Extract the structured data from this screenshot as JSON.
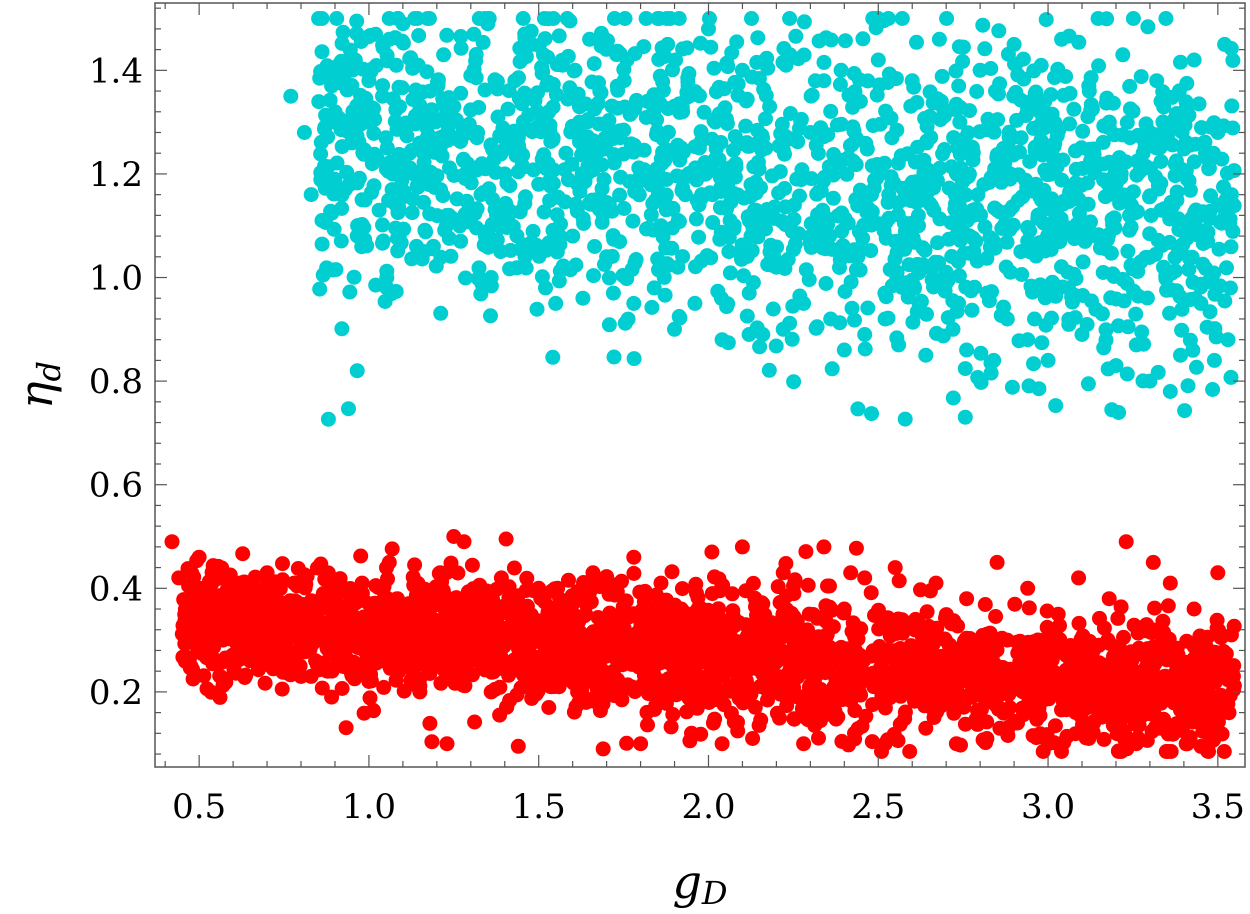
{
  "chart_data": {
    "type": "scatter",
    "title": "",
    "xlabel": "g",
    "xlabel_sub": "D",
    "ylabel": "η",
    "ylabel_sub": "d",
    "xlim": [
      0.37,
      3.58
    ],
    "ylim": [
      0.055,
      1.53
    ],
    "xticks": [
      0.5,
      1.0,
      1.5,
      2.0,
      2.5,
      3.0,
      3.5
    ],
    "xtick_labels": [
      "0.5",
      "1.0",
      "1.5",
      "2.0",
      "2.5",
      "3.0",
      "3.5"
    ],
    "yticks": [
      0.2,
      0.4,
      0.6,
      0.8,
      1.0,
      1.2,
      1.4
    ],
    "ytick_labels": [
      "0.2",
      "0.4",
      "0.6",
      "0.8",
      "1.0",
      "1.2",
      "1.4"
    ],
    "grid": false,
    "legend": "none",
    "series": [
      {
        "color": "#00CED1",
        "points": [
          [
            0.77,
            1.35
          ],
          [
            0.81,
            1.28
          ],
          [
            0.83,
            1.16
          ],
          [
            0.86,
            1.19
          ],
          [
            0.87,
            1.29
          ],
          [
            0.89,
            1.37
          ],
          [
            0.9,
            1.32
          ],
          [
            0.92,
            1.4
          ],
          [
            0.93,
            1.17
          ],
          [
            0.95,
            1.26
          ],
          [
            0.96,
            1.42
          ],
          [
            0.98,
            1.15
          ],
          [
            0.99,
            1.3
          ],
          [
            1.0,
            1.38
          ],
          [
            1.01,
            1.22
          ],
          [
            1.03,
            1.13
          ],
          [
            1.04,
            1.35
          ],
          [
            1.05,
            1.27
          ],
          [
            1.06,
            1.46
          ],
          [
            1.07,
            1.2
          ],
          [
            1.08,
            1.14
          ],
          [
            1.09,
            1.33
          ],
          [
            1.1,
            1.49
          ],
          [
            1.12,
            1.24
          ],
          [
            1.13,
            1.41
          ],
          [
            1.14,
            1.06
          ],
          [
            1.15,
            1.3
          ],
          [
            1.17,
            1.19
          ],
          [
            1.18,
            1.36
          ],
          [
            1.19,
            1.06
          ],
          [
            1.21,
            1.25
          ],
          [
            1.22,
            1.43
          ],
          [
            1.23,
            1.12
          ],
          [
            1.25,
            1.33
          ],
          [
            1.27,
            1.07
          ],
          [
            1.29,
            1.22
          ],
          [
            1.3,
            1.39
          ],
          [
            1.32,
            1.28
          ],
          [
            1.33,
            1.16
          ],
          [
            1.35,
            1.49
          ],
          [
            1.36,
            1.0
          ],
          [
            1.38,
            1.31
          ],
          [
            1.4,
            1.2
          ],
          [
            1.41,
            1.11
          ],
          [
            1.43,
            1.38
          ],
          [
            1.44,
            1.27
          ],
          [
            1.46,
            1.04
          ],
          [
            1.48,
            1.45
          ],
          [
            1.5,
            1.18
          ],
          [
            1.52,
            0.98
          ],
          [
            1.53,
            1.32
          ],
          [
            1.55,
            0.95
          ],
          [
            1.57,
            1.41
          ],
          [
            1.58,
            1.24
          ],
          [
            1.6,
            1.08
          ],
          [
            1.62,
            1.3
          ],
          [
            1.63,
            0.96
          ],
          [
            1.65,
            1.46
          ],
          [
            1.67,
            1.15
          ],
          [
            1.68,
            1.36
          ],
          [
            1.7,
            1.04
          ],
          [
            1.72,
            0.97
          ],
          [
            1.74,
            1.27
          ],
          [
            1.76,
            1.42
          ],
          [
            1.78,
            0.95
          ],
          [
            1.8,
            1.19
          ],
          [
            1.82,
            1.34
          ],
          [
            1.84,
            0.98
          ],
          [
            1.86,
            1.1
          ],
          [
            1.88,
            1.45
          ],
          [
            1.9,
            0.9
          ],
          [
            1.92,
            1.25
          ],
          [
            1.94,
            1.37
          ],
          [
            1.96,
            0.95
          ],
          [
            1.98,
            1.16
          ],
          [
            2.0,
            1.48
          ],
          [
            2.02,
            1.3
          ],
          [
            2.04,
            0.88
          ],
          [
            2.06,
            1.05
          ],
          [
            2.08,
            1.22
          ],
          [
            2.1,
            1.4
          ],
          [
            2.12,
            0.97
          ],
          [
            2.14,
            1.13
          ],
          [
            2.16,
            0.89
          ],
          [
            2.18,
            1.33
          ],
          [
            2.2,
            1.02
          ],
          [
            2.22,
            0.9
          ],
          [
            2.24,
            1.43
          ],
          [
            2.26,
            1.19
          ],
          [
            2.28,
            0.95
          ],
          [
            2.3,
            1.28
          ],
          [
            2.32,
            1.08
          ],
          [
            2.34,
            1.38
          ],
          [
            2.36,
            0.92
          ],
          [
            2.38,
            1.22
          ],
          [
            2.4,
            0.86
          ],
          [
            2.42,
            1.35
          ],
          [
            2.44,
            1.04
          ],
          [
            2.46,
            0.89
          ],
          [
            2.48,
            1.16
          ],
          [
            2.5,
            1.42
          ],
          [
            2.52,
            0.92
          ],
          [
            2.54,
            1.27
          ],
          [
            2.56,
            0.87
          ],
          [
            2.58,
            1.09
          ],
          [
            2.6,
            1.38
          ],
          [
            2.62,
            0.95
          ],
          [
            2.64,
            0.85
          ],
          [
            2.66,
            1.2
          ],
          [
            2.68,
            1.46
          ],
          [
            2.7,
            1.01
          ],
          [
            2.72,
            0.9
          ],
          [
            2.74,
            1.3
          ],
          [
            2.76,
            0.86
          ],
          [
            2.78,
            1.12
          ],
          [
            2.8,
            1.4
          ],
          [
            2.82,
            0.97
          ],
          [
            2.84,
            0.84
          ],
          [
            2.86,
            1.23
          ],
          [
            2.88,
            0.92
          ],
          [
            2.9,
            1.45
          ],
          [
            2.92,
            1.05
          ],
          [
            2.94,
            0.88
          ],
          [
            2.96,
            1.33
          ],
          [
            2.98,
            1.15
          ],
          [
            3.0,
            0.84
          ],
          [
            3.02,
            1.26
          ],
          [
            3.04,
            1.46
          ],
          [
            3.06,
            0.98
          ],
          [
            3.08,
            1.18
          ],
          [
            3.1,
            0.89
          ],
          [
            3.12,
            1.37
          ],
          [
            3.14,
            1.08
          ],
          [
            3.16,
            0.93
          ],
          [
            3.18,
            1.29
          ],
          [
            3.2,
            0.83
          ],
          [
            3.22,
            1.43
          ],
          [
            3.24,
            1.12
          ],
          [
            3.26,
            0.87
          ],
          [
            3.28,
            1.24
          ],
          [
            3.3,
            0.8
          ],
          [
            3.32,
            1.38
          ],
          [
            3.34,
            1.02
          ],
          [
            3.36,
            0.78
          ],
          [
            3.37,
            1.3
          ],
          [
            3.39,
            0.85
          ],
          [
            3.41,
            1.19
          ],
          [
            3.43,
            1.42
          ],
          [
            3.45,
            0.95
          ],
          [
            3.47,
            1.07
          ],
          [
            3.49,
            0.84
          ],
          [
            3.5,
            1.28
          ],
          [
            3.52,
            1.45
          ],
          [
            3.53,
            0.88
          ],
          [
            3.54,
            1.16
          ]
        ],
        "cloud": {
          "x_range": [
            0.85,
            3.55
          ],
          "y_center_start": 1.25,
          "y_center_end": 1.12,
          "y_spread": 0.15,
          "count": 1700
        }
      },
      {
        "color": "#FF0000",
        "points": [
          [
            0.42,
            0.49
          ],
          [
            0.44,
            0.42
          ],
          [
            0.47,
            0.34
          ],
          [
            0.5,
            0.46
          ],
          [
            0.52,
            0.38
          ],
          [
            0.55,
            0.43
          ],
          [
            0.57,
            0.3
          ],
          [
            0.6,
            0.36
          ],
          [
            0.62,
            0.41
          ],
          [
            0.65,
            0.26
          ],
          [
            0.67,
            0.33
          ],
          [
            0.7,
            0.43
          ],
          [
            0.72,
            0.29
          ],
          [
            0.75,
            0.37
          ],
          [
            0.78,
            0.41
          ],
          [
            0.8,
            0.23
          ],
          [
            0.83,
            0.32
          ],
          [
            0.86,
            0.38
          ],
          [
            0.89,
            0.19
          ],
          [
            0.92,
            0.28
          ],
          [
            0.95,
            0.35
          ],
          [
            0.98,
            0.41
          ],
          [
            1.0,
            0.22
          ],
          [
            1.03,
            0.31
          ],
          [
            1.06,
            0.45
          ],
          [
            1.09,
            0.25
          ],
          [
            1.12,
            0.36
          ],
          [
            1.15,
            0.2
          ],
          [
            1.18,
            0.34
          ],
          [
            1.21,
            0.43
          ],
          [
            1.23,
            0.1
          ],
          [
            1.25,
            0.5
          ],
          [
            1.28,
            0.49
          ],
          [
            1.3,
            0.27
          ],
          [
            1.33,
            0.38
          ],
          [
            1.36,
            0.2
          ],
          [
            1.39,
            0.42
          ],
          [
            1.42,
            0.31
          ],
          [
            1.44,
            0.095
          ],
          [
            1.47,
            0.24
          ],
          [
            1.5,
            0.4
          ],
          [
            1.53,
            0.34
          ],
          [
            1.56,
            0.21
          ],
          [
            1.6,
            0.37
          ],
          [
            1.63,
            0.28
          ],
          [
            1.66,
            0.43
          ],
          [
            1.69,
            0.09
          ],
          [
            1.72,
            0.24
          ],
          [
            1.75,
            0.35
          ],
          [
            1.78,
            0.46
          ],
          [
            1.8,
            0.1
          ],
          [
            1.83,
            0.3
          ],
          [
            1.86,
            0.41
          ],
          [
            1.89,
            0.2
          ],
          [
            1.92,
            0.36
          ],
          [
            1.95,
            0.12
          ],
          [
            1.98,
            0.32
          ],
          [
            2.01,
            0.47
          ],
          [
            2.04,
            0.1
          ],
          [
            2.07,
            0.25
          ],
          [
            2.1,
            0.48
          ],
          [
            2.13,
            0.11
          ],
          [
            2.16,
            0.37
          ],
          [
            2.19,
            0.22
          ],
          [
            2.22,
            0.43
          ],
          [
            2.25,
            0.33
          ],
          [
            2.28,
            0.1
          ],
          [
            2.31,
            0.29
          ],
          [
            2.34,
            0.48
          ],
          [
            2.37,
            0.21
          ],
          [
            2.4,
            0.36
          ],
          [
            2.43,
            0.12
          ],
          [
            2.46,
            0.42
          ],
          [
            2.49,
            0.27
          ],
          [
            2.52,
            0.1
          ],
          [
            2.55,
            0.44
          ],
          [
            2.58,
            0.2
          ],
          [
            2.61,
            0.34
          ],
          [
            2.64,
            0.13
          ],
          [
            2.67,
            0.41
          ],
          [
            2.7,
            0.25
          ],
          [
            2.73,
            0.1
          ],
          [
            2.76,
            0.38
          ],
          [
            2.79,
            0.22
          ],
          [
            2.82,
            0.11
          ],
          [
            2.85,
            0.45
          ],
          [
            2.88,
            0.3
          ],
          [
            2.91,
            0.14
          ],
          [
            2.94,
            0.4
          ],
          [
            2.97,
            0.2
          ],
          [
            3.0,
            0.1
          ],
          [
            3.03,
            0.35
          ],
          [
            3.06,
            0.24
          ],
          [
            3.09,
            0.42
          ],
          [
            3.12,
            0.11
          ],
          [
            3.15,
            0.29
          ],
          [
            3.18,
            0.38
          ],
          [
            3.21,
            0.2
          ],
          [
            3.23,
            0.49
          ],
          [
            3.26,
            0.1
          ],
          [
            3.29,
            0.33
          ],
          [
            3.31,
            0.45
          ],
          [
            3.33,
            0.13
          ],
          [
            3.36,
            0.41
          ],
          [
            3.38,
            0.22
          ],
          [
            3.41,
            0.1
          ],
          [
            3.43,
            0.36
          ],
          [
            3.46,
            0.27
          ],
          [
            3.48,
            0.12
          ],
          [
            3.5,
            0.43
          ],
          [
            3.52,
            0.19
          ],
          [
            3.54,
            0.31
          ]
        ],
        "cloud": {
          "x_range": [
            0.45,
            3.55
          ],
          "y_center_start": 0.34,
          "y_center_end": 0.2,
          "y_spread": 0.06,
          "count": 2600
        }
      }
    ]
  }
}
